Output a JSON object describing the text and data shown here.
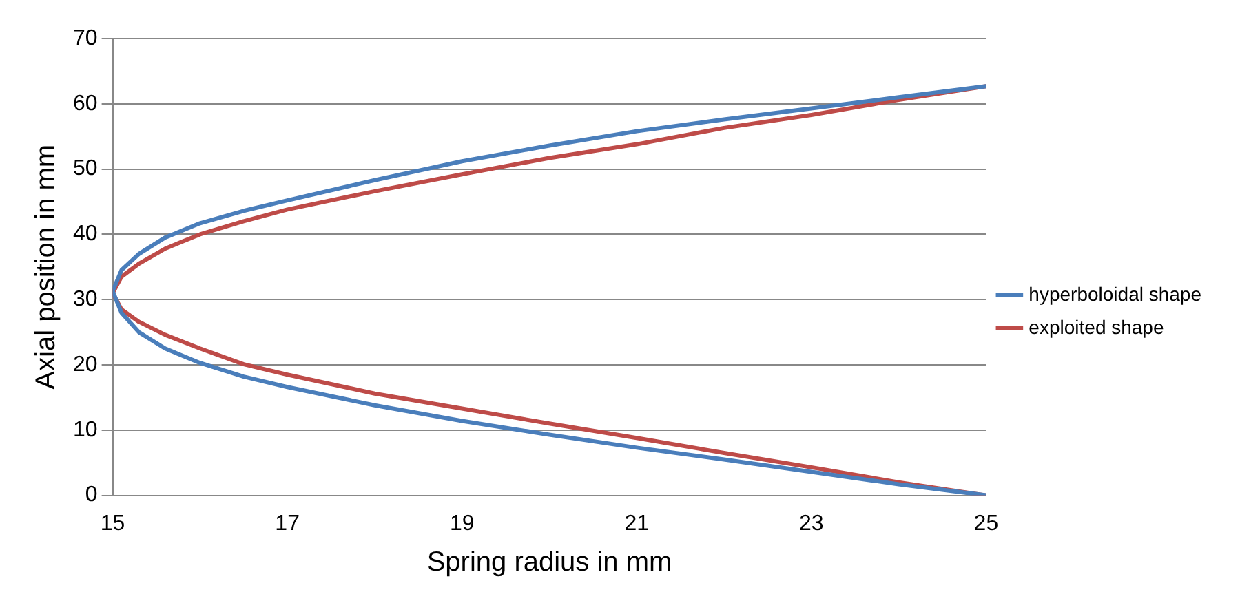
{
  "chart_data": {
    "type": "line",
    "xlabel": "Spring radius in mm",
    "ylabel": "Axial position in mm",
    "xlim": [
      15,
      25
    ],
    "xticks": [
      15,
      17,
      19,
      21,
      23,
      25
    ],
    "ylim": [
      0,
      70
    ],
    "yticks": [
      0,
      10,
      20,
      30,
      40,
      50,
      60,
      70
    ],
    "grid": "y",
    "legend": "right",
    "marker": "none",
    "line_style": "solid",
    "series": [
      {
        "name": "hyperboloidal shape",
        "color": "#4a7ebb",
        "x": [
          25,
          24,
          23,
          22,
          21,
          20,
          19,
          18,
          17,
          16.5,
          16,
          15.6,
          15.3,
          15.1,
          15,
          15.1,
          15.3,
          15.6,
          16,
          16.5,
          17,
          18,
          19,
          20,
          21,
          22,
          23,
          24,
          25
        ],
        "values": [
          0,
          1.7,
          3.6,
          5.5,
          7.3,
          9.3,
          11.4,
          13.8,
          16.6,
          18.2,
          20.3,
          22.5,
          25,
          28,
          31.3,
          34.5,
          37,
          39.5,
          41.7,
          43.6,
          45.2,
          48.3,
          51.2,
          53.6,
          55.8,
          57.6,
          59.3,
          61,
          62.7
        ]
      },
      {
        "name": "exploited shape",
        "color": "#be4b48",
        "x": [
          25,
          24,
          23,
          22,
          21,
          20,
          19,
          18,
          17,
          16.5,
          16,
          15.6,
          15.3,
          15.1,
          15,
          15.1,
          15.3,
          15.6,
          16,
          16.5,
          17,
          18,
          19,
          20,
          21,
          22,
          23,
          24,
          25
        ],
        "values": [
          0,
          2,
          4.3,
          6.5,
          8.8,
          11,
          13.3,
          15.6,
          18.5,
          20.1,
          22.5,
          24.6,
          26.6,
          28.5,
          31,
          33.5,
          35.5,
          37.8,
          40,
          42,
          43.8,
          46.6,
          49.2,
          51.7,
          53.8,
          56.3,
          58.3,
          60.6,
          62.7
        ]
      }
    ]
  }
}
